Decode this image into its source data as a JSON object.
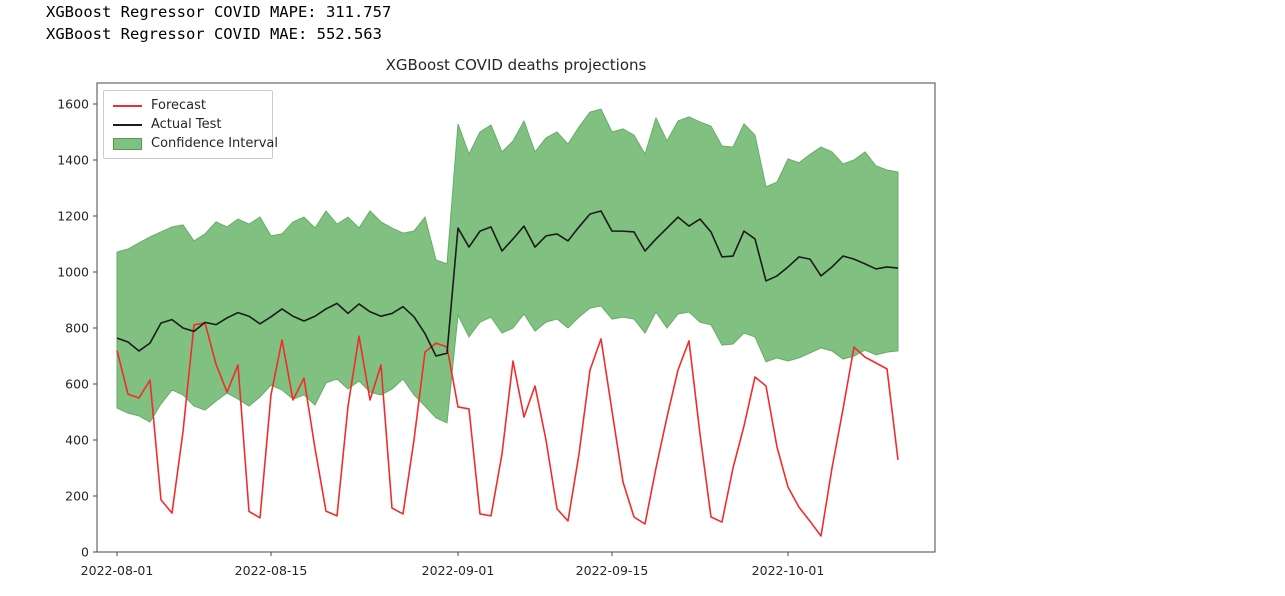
{
  "console": {
    "line1": "XGBoost Regressor COVID MAPE: 311.757",
    "line2": "XGBoost Regressor COVID MAE: 552.563"
  },
  "chart_data": {
    "type": "line",
    "title": "XGBoost COVID deaths projections",
    "xlabel": "",
    "ylabel": "",
    "grid": false,
    "legend_position": "upper left",
    "ylim": [
      0,
      1675
    ],
    "yticks": [
      0,
      200,
      400,
      600,
      800,
      1000,
      1200,
      1400,
      1600
    ],
    "xticks": [
      {
        "label": "2022-08-01",
        "index": 0
      },
      {
        "label": "2022-08-15",
        "index": 14
      },
      {
        "label": "2022-09-01",
        "index": 31
      },
      {
        "label": "2022-09-15",
        "index": 45
      },
      {
        "label": "2022-10-01",
        "index": 61
      }
    ],
    "legend": [
      {
        "label": "Forecast"
      },
      {
        "label": "Actual Test"
      },
      {
        "label": "Confidence Interval"
      }
    ],
    "x": [
      "2022-08-01",
      "2022-08-02",
      "2022-08-03",
      "2022-08-04",
      "2022-08-05",
      "2022-08-06",
      "2022-08-07",
      "2022-08-08",
      "2022-08-09",
      "2022-08-10",
      "2022-08-11",
      "2022-08-12",
      "2022-08-13",
      "2022-08-14",
      "2022-08-15",
      "2022-08-16",
      "2022-08-17",
      "2022-08-18",
      "2022-08-19",
      "2022-08-20",
      "2022-08-21",
      "2022-08-22",
      "2022-08-23",
      "2022-08-24",
      "2022-08-25",
      "2022-08-26",
      "2022-08-27",
      "2022-08-28",
      "2022-08-29",
      "2022-08-30",
      "2022-08-31",
      "2022-09-01",
      "2022-09-02",
      "2022-09-03",
      "2022-09-04",
      "2022-09-05",
      "2022-09-06",
      "2022-09-07",
      "2022-09-08",
      "2022-09-09",
      "2022-09-10",
      "2022-09-11",
      "2022-09-12",
      "2022-09-13",
      "2022-09-14",
      "2022-09-15",
      "2022-09-16",
      "2022-09-17",
      "2022-09-18",
      "2022-09-19",
      "2022-09-20",
      "2022-09-21",
      "2022-09-22",
      "2022-09-23",
      "2022-09-24",
      "2022-09-25",
      "2022-09-26",
      "2022-09-27",
      "2022-09-28",
      "2022-09-29",
      "2022-09-30",
      "2022-10-01",
      "2022-10-02",
      "2022-10-03",
      "2022-10-04",
      "2022-10-05",
      "2022-10-06",
      "2022-10-07",
      "2022-10-08",
      "2022-10-09",
      "2022-10-10",
      "2022-10-11"
    ],
    "series": [
      {
        "name": "Forecast",
        "color": "#f22c2c",
        "values": [
          720,
          564,
          550,
          614,
          186,
          139,
          430,
          811,
          818,
          671,
          571,
          668,
          145,
          122,
          561,
          757,
          543,
          621,
          370,
          146,
          129,
          520,
          771,
          543,
          668,
          157,
          136,
          400,
          714,
          746,
          732,
          518,
          511,
          136,
          129,
          350,
          682,
          482,
          593,
          400,
          154,
          111,
          350,
          650,
          761,
          504,
          250,
          125,
          100,
          300,
          482,
          650,
          754,
          421,
          125,
          107,
          300,
          450,
          625,
          593,
          375,
          232,
          160,
          110,
          57,
          300,
          510,
          732,
          696,
          675,
          654,
          329
        ]
      },
      {
        "name": "Actual Test",
        "color": "#1b1b1b",
        "values": [
          764,
          750,
          718,
          746,
          818,
          830,
          800,
          788,
          820,
          812,
          836,
          855,
          842,
          815,
          840,
          868,
          842,
          825,
          842,
          868,
          888,
          852,
          886,
          858,
          842,
          852,
          876,
          840,
          780,
          700,
          710,
          1157,
          1089,
          1146,
          1161,
          1075,
          1118,
          1164,
          1089,
          1129,
          1136,
          1111,
          1161,
          1207,
          1218,
          1146,
          1146,
          1143,
          1075,
          1118,
          1157,
          1196,
          1164,
          1189,
          1143,
          1054,
          1057,
          1146,
          1118,
          968,
          986,
          1018,
          1054,
          1046,
          986,
          1018,
          1057,
          1046,
          1029,
          1011,
          1018,
          1014
        ]
      }
    ],
    "band": {
      "name": "Confidence Interval",
      "fill": "#80c080",
      "edge": "#66ad66",
      "lower": [
        514,
        496,
        486,
        464,
        529,
        579,
        561,
        521,
        507,
        539,
        568,
        546,
        521,
        554,
        596,
        579,
        546,
        561,
        525,
        604,
        618,
        582,
        611,
        571,
        561,
        582,
        618,
        561,
        521,
        479,
        461,
        846,
        768,
        821,
        839,
        782,
        800,
        850,
        789,
        821,
        832,
        800,
        839,
        871,
        879,
        832,
        839,
        832,
        782,
        857,
        800,
        850,
        857,
        821,
        811,
        739,
        743,
        782,
        768,
        679,
        693,
        682,
        693,
        711,
        729,
        718,
        689,
        700,
        721,
        704,
        714,
        718
      ],
      "upper": [
        1071,
        1082,
        1104,
        1125,
        1143,
        1161,
        1168,
        1111,
        1136,
        1179,
        1161,
        1189,
        1171,
        1196,
        1129,
        1136,
        1179,
        1196,
        1157,
        1218,
        1171,
        1196,
        1157,
        1218,
        1179,
        1157,
        1139,
        1146,
        1196,
        1043,
        1029,
        1529,
        1421,
        1500,
        1525,
        1429,
        1468,
        1539,
        1429,
        1479,
        1500,
        1457,
        1518,
        1571,
        1582,
        1500,
        1511,
        1489,
        1421,
        1550,
        1468,
        1539,
        1554,
        1536,
        1521,
        1450,
        1446,
        1529,
        1489,
        1304,
        1321,
        1404,
        1390,
        1420,
        1446,
        1429,
        1386,
        1400,
        1429,
        1379,
        1364,
        1357
      ]
    },
    "axis_color": "#4a4a4a",
    "tick_label_color": "#262626"
  }
}
